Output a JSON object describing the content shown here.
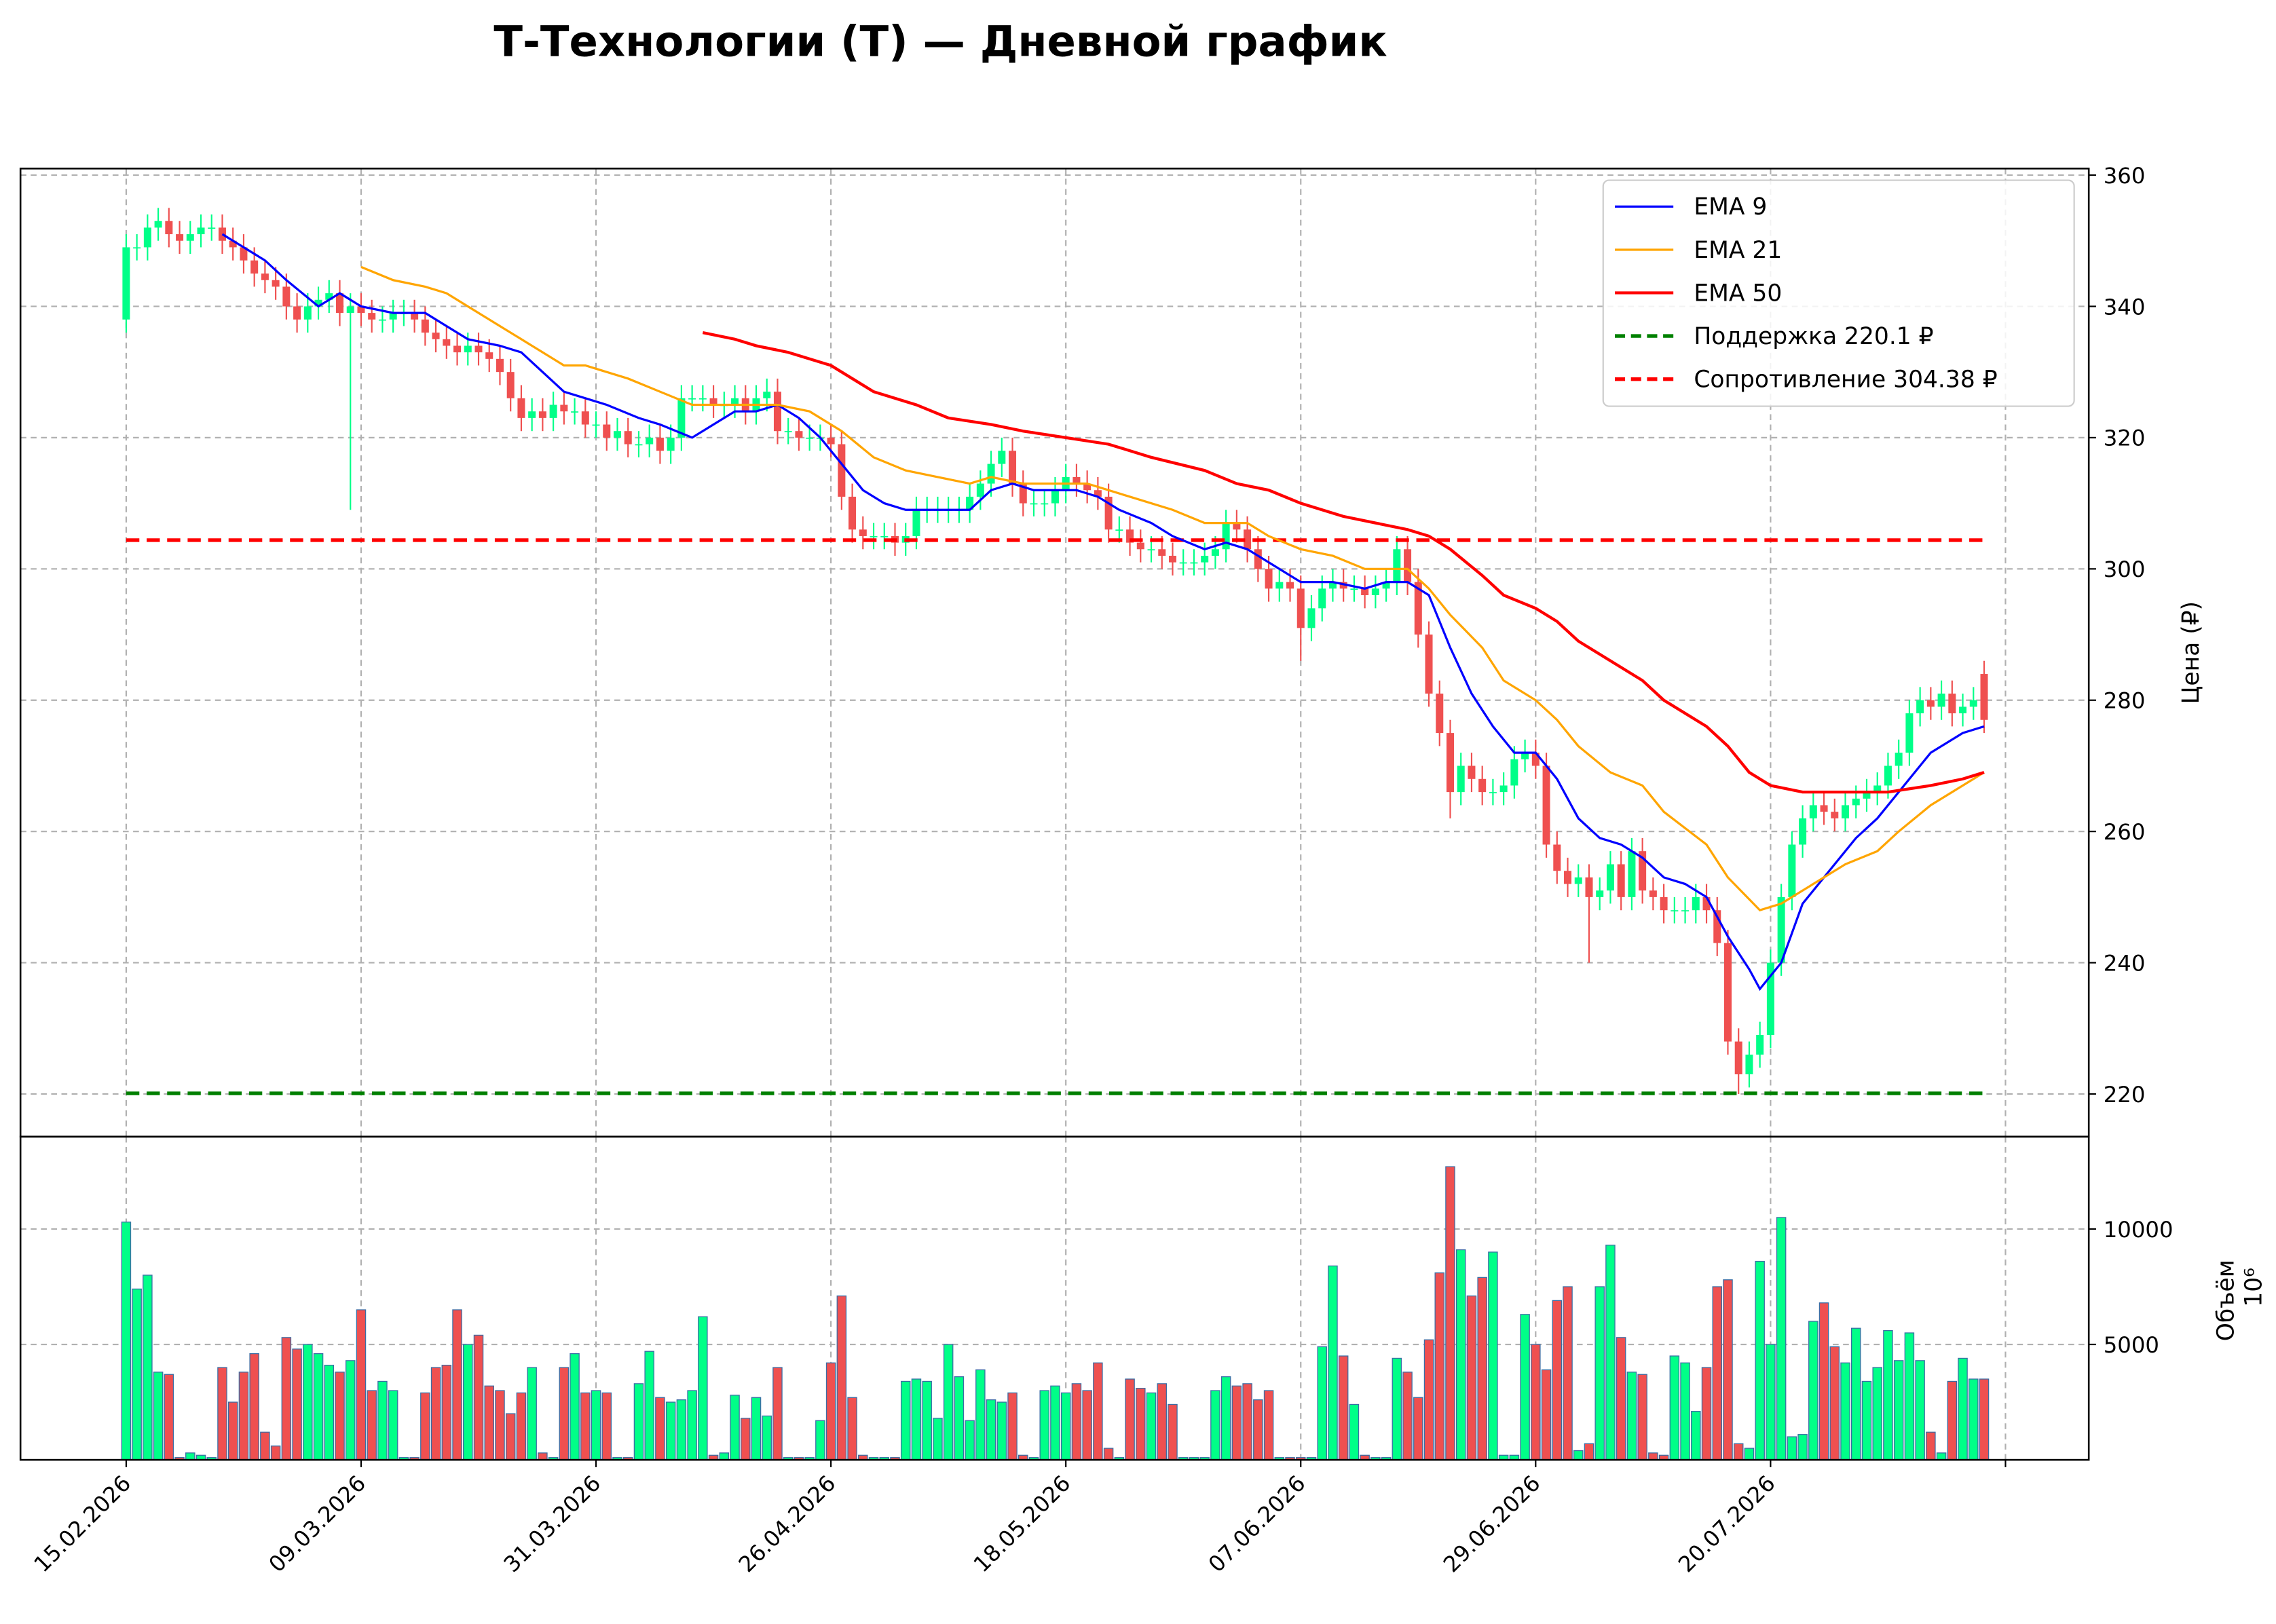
{
  "chart_data": [
    {
      "type": "candlestick",
      "title": "Т-Технологии (T) — Дневной график",
      "y_label": "Цена (₽)",
      "up_color": "#00ff88",
      "down_color": "#ef5050",
      "ylim": [
        213.5,
        361
      ],
      "yticks": [
        220,
        240,
        260,
        280,
        300,
        320,
        340,
        360
      ],
      "grid": true,
      "legend": "upper right",
      "open": [
        338,
        349,
        349,
        352,
        353,
        351,
        350,
        351,
        352,
        352,
        350,
        349,
        347,
        345,
        344,
        343,
        340,
        338,
        340,
        341,
        342,
        339,
        340,
        339,
        338,
        338,
        339,
        339,
        338,
        336,
        335,
        334,
        333,
        334,
        333,
        332,
        330,
        326,
        323,
        324,
        323,
        325,
        324,
        324,
        322,
        322,
        320,
        321,
        319,
        319,
        320,
        318,
        320,
        326,
        326,
        326,
        325,
        325,
        326,
        324,
        326,
        327,
        321,
        321,
        320,
        320,
        320,
        319,
        311,
        306,
        305,
        305,
        305,
        304,
        305,
        309,
        309,
        309,
        309,
        309,
        311,
        313,
        316,
        318,
        313,
        310,
        310,
        310,
        312,
        314,
        313,
        312,
        311,
        306,
        306,
        304,
        303,
        303,
        302,
        301,
        301,
        301,
        302,
        303,
        307,
        306,
        303,
        300,
        297,
        298,
        297,
        291,
        294,
        297,
        298,
        297,
        297,
        296,
        297,
        298,
        303,
        298,
        290,
        281,
        275,
        266,
        270,
        268,
        266,
        266,
        267,
        271,
        272,
        270,
        258,
        254,
        252,
        253,
        250,
        251,
        255,
        250,
        257,
        251,
        250,
        248,
        248,
        248,
        250,
        248,
        243,
        228,
        223,
        226,
        229,
        240,
        250,
        258,
        262,
        264,
        263,
        262,
        264,
        265,
        266,
        267,
        270,
        272,
        278,
        280,
        279,
        281,
        278,
        279,
        284
      ],
      "high": [
        351,
        351,
        354,
        355,
        355,
        353,
        353,
        354,
        354,
        354,
        352,
        351,
        349,
        347,
        346,
        345,
        342,
        342,
        343,
        344,
        344,
        342,
        342,
        341,
        340,
        341,
        341,
        341,
        340,
        338,
        337,
        336,
        336,
        336,
        335,
        334,
        332,
        328,
        326,
        326,
        327,
        327,
        326,
        326,
        324,
        324,
        323,
        323,
        321,
        322,
        322,
        322,
        328,
        328,
        328,
        328,
        327,
        328,
        328,
        328,
        329,
        329,
        323,
        323,
        322,
        322,
        322,
        321,
        313,
        308,
        307,
        307,
        307,
        307,
        311,
        311,
        311,
        311,
        311,
        313,
        315,
        318,
        320,
        320,
        315,
        312,
        312,
        314,
        316,
        316,
        315,
        314,
        313,
        308,
        308,
        306,
        305,
        305,
        304,
        303,
        303,
        304,
        305,
        309,
        309,
        308,
        305,
        302,
        300,
        300,
        299,
        296,
        299,
        300,
        300,
        299,
        299,
        299,
        300,
        305,
        305,
        300,
        292,
        283,
        277,
        272,
        272,
        270,
        268,
        269,
        273,
        274,
        274,
        272,
        260,
        256,
        255,
        255,
        253,
        257,
        257,
        259,
        259,
        253,
        252,
        250,
        250,
        252,
        252,
        250,
        245,
        230,
        228,
        231,
        242,
        252,
        260,
        264,
        266,
        266,
        265,
        266,
        267,
        268,
        269,
        272,
        274,
        280,
        282,
        282,
        283,
        283,
        281,
        282,
        286
      ],
      "low": [
        336,
        347,
        347,
        350,
        349,
        348,
        348,
        349,
        350,
        348,
        347,
        345,
        343,
        342,
        341,
        338,
        336,
        336,
        338,
        339,
        337,
        309,
        337,
        336,
        336,
        336,
        337,
        336,
        334,
        333,
        332,
        331,
        331,
        331,
        330,
        328,
        324,
        321,
        321,
        321,
        321,
        322,
        322,
        320,
        320,
        318,
        318,
        317,
        317,
        317,
        316,
        316,
        318,
        324,
        324,
        323,
        323,
        323,
        322,
        322,
        324,
        319,
        319,
        318,
        318,
        318,
        317,
        309,
        304,
        303,
        303,
        303,
        302,
        302,
        303,
        307,
        307,
        307,
        307,
        307,
        309,
        311,
        314,
        311,
        308,
        308,
        308,
        308,
        310,
        311,
        310,
        309,
        304,
        304,
        302,
        301,
        301,
        300,
        299,
        299,
        299,
        299,
        300,
        301,
        304,
        301,
        298,
        295,
        295,
        295,
        286,
        289,
        292,
        295,
        295,
        295,
        294,
        294,
        295,
        296,
        296,
        288,
        279,
        273,
        262,
        264,
        266,
        264,
        264,
        264,
        265,
        269,
        268,
        256,
        252,
        250,
        250,
        240,
        248,
        249,
        248,
        248,
        249,
        248,
        246,
        246,
        246,
        246,
        246,
        241,
        226,
        220,
        221,
        224,
        227,
        238,
        248,
        256,
        260,
        261,
        260,
        260,
        262,
        263,
        264,
        265,
        268,
        270,
        276,
        277,
        277,
        276,
        276,
        277,
        275
      ],
      "close": [
        349,
        349,
        352,
        353,
        351,
        350,
        351,
        352,
        352,
        350,
        349,
        347,
        345,
        344,
        343,
        340,
        338,
        340,
        341,
        342,
        339,
        340,
        339,
        338,
        338,
        339,
        339,
        338,
        336,
        335,
        334,
        333,
        334,
        333,
        332,
        330,
        326,
        323,
        324,
        323,
        325,
        324,
        324,
        322,
        322,
        320,
        321,
        319,
        319,
        320,
        318,
        320,
        326,
        326,
        326,
        325,
        325,
        326,
        324,
        326,
        327,
        321,
        321,
        320,
        320,
        320,
        319,
        311,
        306,
        305,
        305,
        305,
        304,
        305,
        309,
        309,
        309,
        309,
        309,
        311,
        313,
        316,
        318,
        313,
        310,
        310,
        310,
        312,
        314,
        313,
        312,
        311,
        306,
        306,
        304,
        303,
        303,
        302,
        301,
        301,
        301,
        302,
        303,
        307,
        306,
        303,
        300,
        297,
        298,
        297,
        291,
        294,
        297,
        298,
        297,
        297,
        296,
        297,
        298,
        303,
        298,
        290,
        281,
        275,
        266,
        270,
        268,
        266,
        266,
        267,
        271,
        272,
        270,
        258,
        254,
        252,
        253,
        250,
        251,
        255,
        250,
        257,
        251,
        250,
        248,
        248,
        248,
        250,
        248,
        243,
        228,
        223,
        226,
        229,
        240,
        250,
        258,
        262,
        264,
        263,
        262,
        264,
        265,
        266,
        267,
        270,
        272,
        278,
        280,
        279,
        281,
        278,
        279,
        280,
        277
      ],
      "lines": [
        {
          "name": "EMA 9",
          "color": "#0000ff",
          "linewidth": 1.5,
          "x": [
            9,
            10,
            13,
            15,
            18,
            20,
            22,
            25,
            28,
            30,
            32,
            35,
            37,
            39,
            41,
            43,
            45,
            48,
            50,
            53,
            55,
            57,
            59,
            61,
            63,
            65,
            67,
            69,
            71,
            73,
            76,
            79,
            81,
            83,
            85,
            87,
            89,
            91,
            93,
            96,
            98,
            101,
            103,
            105,
            107,
            110,
            113,
            116,
            118,
            120,
            122,
            124,
            126,
            128,
            130,
            132,
            134,
            136,
            138,
            140,
            142,
            144,
            146,
            148,
            150,
            152,
            153,
            155,
            157,
            160,
            162,
            164,
            166,
            169,
            172,
            174
          ],
          "values": [
            351,
            350,
            347,
            344,
            340,
            342,
            340,
            339,
            339,
            337,
            335,
            334,
            333,
            330,
            327,
            326,
            325,
            323,
            322,
            320,
            322,
            324,
            324,
            325,
            323,
            320,
            316,
            312,
            310,
            309,
            309,
            309,
            312,
            313,
            312,
            312,
            312,
            311,
            309,
            307,
            305,
            303,
            304,
            303,
            301,
            298,
            298,
            297,
            298,
            298,
            296,
            288,
            281,
            276,
            272,
            272,
            268,
            262,
            259,
            258,
            256,
            253,
            252,
            250,
            244,
            239,
            236,
            240,
            249,
            255,
            259,
            262,
            266,
            272,
            275,
            276
          ]
        },
        {
          "name": "EMA 21",
          "color": "#ffa500",
          "linewidth": 1.5,
          "x": [
            22,
            25,
            28,
            30,
            32,
            35,
            37,
            39,
            41,
            43,
            47,
            50,
            53,
            55,
            58,
            61,
            64,
            67,
            70,
            73,
            76,
            79,
            81,
            84,
            87,
            90,
            94,
            98,
            101,
            105,
            107,
            110,
            113,
            116,
            120,
            122,
            124,
            127,
            129,
            132,
            134,
            136,
            139,
            142,
            144,
            148,
            150,
            153,
            155,
            158,
            161,
            164,
            166,
            169,
            172,
            174
          ],
          "values": [
            346,
            344,
            343,
            342,
            340,
            337,
            335,
            333,
            331,
            331,
            329,
            327,
            325,
            325,
            325,
            325,
            324,
            321,
            317,
            315,
            314,
            313,
            314,
            313,
            313,
            313,
            311,
            309,
            307,
            307,
            305,
            303,
            302,
            300,
            300,
            297,
            293,
            288,
            283,
            280,
            277,
            273,
            269,
            267,
            263,
            258,
            253,
            248,
            249,
            252,
            255,
            257,
            260,
            264,
            267,
            269
          ]
        },
        {
          "name": "EMA 50",
          "color": "#ff0000",
          "linewidth": 2,
          "x": [
            54,
            57,
            59,
            62,
            66,
            70,
            74,
            77,
            81,
            84,
            88,
            92,
            96,
            101,
            104,
            107,
            110,
            114,
            117,
            120,
            122,
            124,
            127,
            129,
            132,
            134,
            136,
            139,
            142,
            144,
            148,
            150,
            152,
            154,
            157,
            161,
            165,
            169,
            172,
            174
          ],
          "values": [
            336,
            335,
            334,
            333,
            331,
            327,
            325,
            323,
            322,
            321,
            320,
            319,
            317,
            315,
            313,
            312,
            310,
            308,
            307,
            306,
            305,
            303,
            299,
            296,
            294,
            292,
            289,
            286,
            283,
            280,
            276,
            273,
            269,
            267,
            266,
            266,
            266,
            267,
            268,
            269
          ]
        }
      ],
      "levels": [
        {
          "name": "Поддержка 220.1 ₽",
          "color": "#008000",
          "value": 220.1,
          "style": "dashed"
        },
        {
          "name": "Сопротивление 304.38 ₽",
          "color": "#ff0000",
          "value": 304.38,
          "style": "dashed"
        }
      ]
    },
    {
      "type": "bar",
      "y_label": "Объём",
      "offset_label": "10⁶",
      "edge_color": "#3b6ea5",
      "ylim": [
        0,
        14000
      ],
      "yticks": [
        5000,
        10000
      ],
      "grid": true,
      "xlim": [
        -9.9,
        183.8
      ],
      "xticks": [
        {
          "value": 0,
          "label": "15.02.2026"
        },
        {
          "value": 22,
          "label": "09.03.2026"
        },
        {
          "value": 44,
          "label": "31.03.2026"
        },
        {
          "value": 66,
          "label": "26.04.2026"
        },
        {
          "value": 88,
          "label": "18.05.2026"
        },
        {
          "value": 110,
          "label": "07.06.2026"
        },
        {
          "value": 132,
          "label": "29.06.2026"
        },
        {
          "value": 154,
          "label": "20.07.2026"
        },
        {
          "value": 176,
          "label": null
        }
      ],
      "values": [
        10300,
        7400,
        8000,
        3800,
        3700,
        100,
        300,
        200,
        100,
        4000,
        2500,
        3800,
        4600,
        1200,
        600,
        5300,
        4800,
        5000,
        4600,
        4100,
        3800,
        4300,
        6500,
        3000,
        3400,
        3000,
        100,
        100,
        2900,
        4000,
        4100,
        6500,
        5000,
        5400,
        3200,
        3000,
        2000,
        2900,
        4000,
        300,
        100,
        4000,
        4600,
        2900,
        3000,
        2900,
        100,
        100,
        3300,
        4700,
        2700,
        2500,
        2600,
        3000,
        6200,
        200,
        300,
        2800,
        1800,
        2700,
        1900,
        4000,
        100,
        100,
        100,
        1700,
        4200,
        7100,
        2700,
        200,
        100,
        100,
        100,
        3400,
        3500,
        3400,
        1800,
        5000,
        3600,
        1700,
        3900,
        2600,
        2500,
        2900,
        200,
        100,
        3000,
        3200,
        2900,
        3300,
        3000,
        4200,
        500,
        100,
        3500,
        3100,
        2900,
        3300,
        2400,
        100,
        100,
        100,
        3000,
        3600,
        3200,
        3300,
        2600,
        3000,
        100,
        100,
        100,
        100,
        4900,
        8400,
        4500,
        2400,
        200,
        100,
        100,
        4400,
        3800,
        2700,
        5200,
        8100,
        12700,
        9100,
        7100,
        7900,
        9000,
        200,
        200,
        6300,
        5000,
        3900,
        6900,
        7500,
        400,
        700,
        7500,
        9300,
        5300,
        3800,
        3700,
        300,
        200,
        4500,
        4200,
        2100,
        4000,
        7500,
        7800,
        700,
        500,
        8600,
        5000,
        10500,
        1000,
        1100,
        6000,
        6800,
        4900,
        4200,
        5700,
        3400,
        4000,
        5600,
        4300,
        5500,
        4300,
        1200,
        300,
        3400,
        4400,
        3500,
        3500
      ]
    }
  ]
}
